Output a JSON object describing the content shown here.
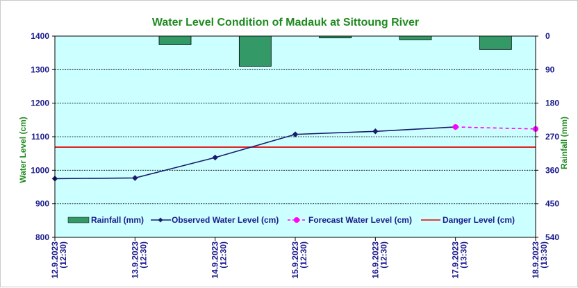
{
  "chart_data": {
    "type": "line",
    "title": "Water Level Condition of Madauk at Sittoung River",
    "ylabel": "Water Level (cm)",
    "y2label": "Rainfall (mm)",
    "ylim": [
      800,
      1400
    ],
    "y2lim": [
      540,
      0
    ],
    "yticks": [
      "1400",
      "1300",
      "1200",
      "1100",
      "1000",
      "900",
      "800"
    ],
    "y2ticks": [
      "0",
      "90",
      "180",
      "270",
      "360",
      "450",
      "540"
    ],
    "categories": [
      [
        "12.9.2023",
        "(12:30)"
      ],
      [
        "13.9.2023",
        "(12:30)"
      ],
      [
        "14.9.2023",
        "(12:30)"
      ],
      [
        "15.9.2023",
        "(12:30)"
      ],
      [
        "16.9.2023",
        "(12:30)"
      ],
      [
        "17.9.2023",
        "(13:30)"
      ],
      [
        "18.9.2023",
        "(13:30)"
      ]
    ],
    "rainfall_mm": [
      null,
      23,
      81,
      5,
      10,
      36
    ],
    "observed_water_level_cm": [
      975,
      977,
      1038,
      1107,
      1116,
      1129,
      null
    ],
    "forecast_water_level_cm": [
      null,
      null,
      null,
      null,
      null,
      1129,
      1123
    ],
    "danger_level_cm": 1069,
    "legend_position": "bottom",
    "legend": [
      "Rainfall (mm)",
      "Observed Water Level (cm)",
      "Forecast Water Level (cm)",
      "Danger Level (cm)"
    ],
    "colors": {
      "plot_bg": "#ccffff",
      "rain_fill": "#339966",
      "observed": "#1a1a6e",
      "forecast": "#ff00ff",
      "danger": "#e00000",
      "tick_text": "#1a1a8c",
      "title_text": "#1f8a1f"
    }
  }
}
